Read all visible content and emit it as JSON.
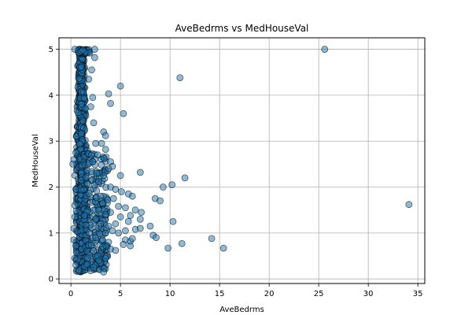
{
  "chart_data": {
    "type": "scatter",
    "title": "AveBedrms vs MedHouseVal",
    "xlabel": "AveBedrms",
    "ylabel": "MedHouseVal",
    "xlim": [
      -1.2,
      35.7
    ],
    "ylim": [
      -0.1,
      5.25
    ],
    "xticks": [
      0,
      5,
      10,
      15,
      20,
      25,
      30,
      35
    ],
    "yticks": [
      0,
      1,
      2,
      3,
      4,
      5
    ],
    "grid": true,
    "marker_color": "#1f77b4",
    "marker_edge": "#000000",
    "series": [
      {
        "points": [
          [
            25.6,
            5.0
          ],
          [
            34.1,
            1.62
          ],
          [
            11.0,
            4.38
          ],
          [
            5.0,
            4.2
          ],
          [
            5.3,
            3.6
          ],
          [
            3.8,
            4.03
          ],
          [
            4.0,
            3.82
          ],
          [
            3.3,
            3.2
          ],
          [
            3.5,
            3.12
          ],
          [
            3.1,
            2.95
          ],
          [
            3.5,
            2.82
          ],
          [
            2.5,
            2.95
          ],
          [
            2.7,
            2.7
          ],
          [
            4.0,
            2.55
          ],
          [
            4.2,
            2.45
          ],
          [
            3.8,
            2.4
          ],
          [
            2.9,
            2.3
          ],
          [
            3.3,
            2.25
          ],
          [
            5.0,
            2.25
          ],
          [
            7.0,
            2.32
          ],
          [
            11.5,
            2.2
          ],
          [
            10.2,
            2.05
          ],
          [
            9.3,
            2.0
          ],
          [
            4.0,
            2.0
          ],
          [
            4.5,
            1.95
          ],
          [
            5.1,
            1.9
          ],
          [
            5.8,
            1.85
          ],
          [
            6.2,
            1.8
          ],
          [
            8.5,
            1.75
          ],
          [
            9.0,
            1.7
          ],
          [
            4.3,
            1.75
          ],
          [
            3.7,
            1.72
          ],
          [
            3.2,
            1.65
          ],
          [
            4.8,
            1.58
          ],
          [
            5.5,
            1.55
          ],
          [
            6.5,
            1.5
          ],
          [
            7.1,
            1.45
          ],
          [
            4.0,
            1.45
          ],
          [
            3.5,
            1.4
          ],
          [
            5.0,
            1.35
          ],
          [
            6.0,
            1.38
          ],
          [
            7.0,
            1.3
          ],
          [
            10.3,
            1.25
          ],
          [
            5.8,
            1.25
          ],
          [
            4.5,
            1.2
          ],
          [
            3.8,
            1.15
          ],
          [
            8.0,
            1.15
          ],
          [
            4.2,
            1.05
          ],
          [
            5.5,
            1.05
          ],
          [
            6.5,
            1.08
          ],
          [
            7.0,
            1.1
          ],
          [
            3.5,
            1.0
          ],
          [
            4.8,
            1.0
          ],
          [
            8.3,
            0.95
          ],
          [
            8.6,
            0.9
          ],
          [
            5.5,
            0.85
          ],
          [
            6.0,
            0.82
          ],
          [
            6.2,
            0.88
          ],
          [
            14.2,
            0.88
          ],
          [
            11.2,
            0.77
          ],
          [
            9.8,
            0.67
          ],
          [
            15.4,
            0.67
          ],
          [
            5.3,
            0.75
          ],
          [
            6.0,
            0.72
          ],
          [
            3.2,
            0.7
          ],
          [
            4.0,
            0.65
          ],
          [
            4.5,
            0.62
          ],
          [
            3.0,
            0.55
          ],
          [
            2.7,
            0.5
          ],
          [
            3.5,
            0.45
          ],
          [
            3.0,
            0.35
          ],
          [
            2.5,
            0.3
          ],
          [
            3.3,
            0.15
          ],
          [
            2.0,
            0.18
          ],
          [
            2.3,
            0.25
          ],
          [
            2.8,
            0.4
          ],
          [
            3.8,
            0.8
          ],
          [
            3.2,
            0.85
          ],
          [
            2.5,
            0.9
          ],
          [
            3.0,
            1.2
          ],
          [
            2.5,
            1.3
          ],
          [
            2.8,
            1.5
          ],
          [
            3.0,
            1.8
          ],
          [
            2.4,
            2.05
          ],
          [
            2.6,
            2.3
          ],
          [
            2.2,
            2.55
          ],
          [
            2.8,
            2.12
          ],
          [
            2.6,
            1.92
          ],
          [
            2.3,
            3.4
          ],
          [
            2.0,
            3.75
          ],
          [
            2.2,
            3.95
          ],
          [
            1.8,
            4.35
          ],
          [
            2.4,
            4.82
          ],
          [
            2.4,
            5.0
          ],
          [
            2.1,
            4.55
          ],
          [
            0.4,
            5.0
          ],
          [
            0.5,
            2.75
          ],
          [
            0.3,
            2.6
          ],
          [
            0.2,
            2.5
          ],
          [
            0.4,
            2.25
          ],
          [
            0.5,
            1.95
          ],
          [
            0.4,
            1.6
          ],
          [
            0.4,
            1.35
          ],
          [
            0.3,
            1.1
          ],
          [
            0.3,
            0.85
          ],
          [
            0.5,
            0.72
          ],
          [
            0.4,
            0.45
          ],
          [
            0.5,
            0.3
          ]
        ]
      }
    ]
  }
}
